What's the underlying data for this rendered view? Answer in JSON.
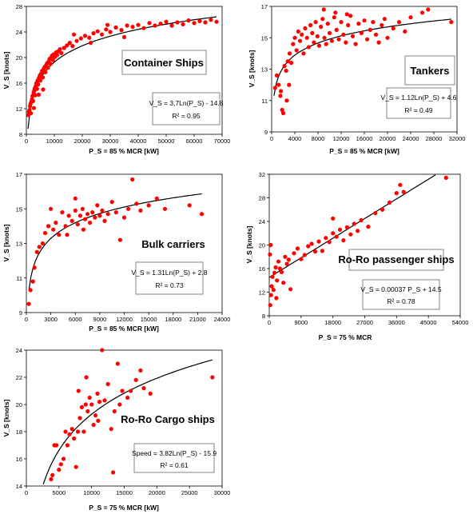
{
  "chart_data": [
    {
      "id": "container",
      "type": "scatter",
      "title": "Container Ships",
      "xlabel": "P_S = 85 % MCR [kW]",
      "ylabel": "V_S [knots]",
      "xlim": [
        0,
        70000
      ],
      "ylim": [
        8,
        28
      ],
      "xticks": [
        "0",
        "10000",
        "20000",
        "30000",
        "40000",
        "50000",
        "60000",
        "70000"
      ],
      "yticks": [
        "8",
        "12",
        "16",
        "20",
        "24",
        "28"
      ],
      "equation": "V_S = 3,7Ln(P_S) - 14.8",
      "r2": "R² = 0.95",
      "trend": {
        "kind": "log",
        "a": 3.7,
        "b": -14.8,
        "xmin": 600,
        "xmax": 68000
      },
      "colors": {
        "points": "#ff0000",
        "trend": "#000000"
      },
      "points": [
        [
          700,
          11.0
        ],
        [
          900,
          11.5
        ],
        [
          1100,
          11.8
        ],
        [
          1300,
          12.4
        ],
        [
          1500,
          12.8
        ],
        [
          1600,
          11.3
        ],
        [
          1800,
          13.1
        ],
        [
          2000,
          13.5
        ],
        [
          2200,
          14.0
        ],
        [
          2400,
          13.2
        ],
        [
          2600,
          14.5
        ],
        [
          2800,
          14.8
        ],
        [
          3000,
          15.2
        ],
        [
          3200,
          14.1
        ],
        [
          3400,
          15.6
        ],
        [
          3600,
          16.0
        ],
        [
          3800,
          15.1
        ],
        [
          4000,
          16.4
        ],
        [
          4200,
          15.8
        ],
        [
          4500,
          16.8
        ],
        [
          4800,
          17.2
        ],
        [
          5000,
          16.4
        ],
        [
          5300,
          17.5
        ],
        [
          5600,
          17.9
        ],
        [
          5900,
          16.9
        ],
        [
          6200,
          18.2
        ],
        [
          6500,
          18.5
        ],
        [
          6800,
          17.7
        ],
        [
          7100,
          18.8
        ],
        [
          7400,
          19.1
        ],
        [
          7700,
          18.4
        ],
        [
          8000,
          19.4
        ],
        [
          8300,
          19.8
        ],
        [
          8600,
          19.0
        ],
        [
          8900,
          20.0
        ],
        [
          9200,
          20.3
        ],
        [
          9500,
          19.6
        ],
        [
          9800,
          20.5
        ],
        [
          10200,
          20.1
        ],
        [
          10600,
          20.8
        ],
        [
          11000,
          20.4
        ],
        [
          11500,
          21.0
        ],
        [
          12000,
          21.3
        ],
        [
          12500,
          20.7
        ],
        [
          13500,
          21.5
        ],
        [
          14500,
          21.9
        ],
        [
          15500,
          22.3
        ],
        [
          16500,
          21.8
        ],
        [
          18000,
          22.6
        ],
        [
          19500,
          23.0
        ],
        [
          21000,
          23.4
        ],
        [
          22500,
          23.1
        ],
        [
          24000,
          23.8
        ],
        [
          25500,
          24.1
        ],
        [
          27000,
          23.6
        ],
        [
          28500,
          24.4
        ],
        [
          30000,
          24.0
        ],
        [
          32000,
          24.7
        ],
        [
          34000,
          24.3
        ],
        [
          36000,
          25.0
        ],
        [
          38000,
          24.8
        ],
        [
          40000,
          25.1
        ],
        [
          42000,
          24.6
        ],
        [
          44000,
          25.4
        ],
        [
          46000,
          25.0
        ],
        [
          48000,
          25.3
        ],
        [
          50000,
          25.6
        ],
        [
          52000,
          25.0
        ],
        [
          54000,
          25.5
        ],
        [
          56000,
          25.2
        ],
        [
          58000,
          25.8
        ],
        [
          60000,
          25.4
        ],
        [
          62000,
          25.7
        ],
        [
          64000,
          25.5
        ],
        [
          66000,
          25.9
        ],
        [
          68000,
          25.6
        ],
        [
          17000,
          23.6
        ],
        [
          23000,
          22.3
        ],
        [
          29000,
          25.1
        ],
        [
          2700,
          12.1
        ],
        [
          6000,
          15.0
        ],
        [
          4400,
          14.2
        ],
        [
          35000,
          23.2
        ]
      ]
    },
    {
      "id": "tankers",
      "type": "scatter",
      "title": "Tankers",
      "xlabel": "P_S = 85 % MCR [kW]",
      "ylabel": "V_S [knots]",
      "xlim": [
        0,
        32000
      ],
      "ylim": [
        9,
        17
      ],
      "xticks": [
        "0",
        "4000",
        "8000",
        "12000",
        "16000",
        "20000",
        "24000",
        "28000",
        "32000"
      ],
      "yticks": [
        "9",
        "11",
        "13",
        "15",
        "17"
      ],
      "equation": "V_S = 1.12Ln(P_S) + 4.6",
      "r2": "R² = 0.49",
      "trend": {
        "kind": "log",
        "a": 1.12,
        "b": 4.6,
        "xmin": 400,
        "xmax": 31000
      },
      "colors": {
        "points": "#ff0000",
        "trend": "#000000"
      },
      "points": [
        [
          600,
          11.8
        ],
        [
          900,
          12.6
        ],
        [
          1200,
          12.0
        ],
        [
          1500,
          11.3
        ],
        [
          1800,
          10.4
        ],
        [
          2000,
          10.2
        ],
        [
          2200,
          13.2
        ],
        [
          2500,
          12.9
        ],
        [
          2800,
          13.5
        ],
        [
          3100,
          14.0
        ],
        [
          3400,
          13.4
        ],
        [
          3700,
          14.6
        ],
        [
          4000,
          15.0
        ],
        [
          4300,
          14.2
        ],
        [
          4600,
          15.4
        ],
        [
          4900,
          14.8
        ],
        [
          5200,
          15.2
        ],
        [
          5500,
          14.0
        ],
        [
          5800,
          15.6
        ],
        [
          6100,
          15.0
        ],
        [
          6400,
          14.4
        ],
        [
          6700,
          15.8
        ],
        [
          7000,
          15.3
        ],
        [
          7300,
          14.7
        ],
        [
          7600,
          16.0
        ],
        [
          7900,
          15.1
        ],
        [
          8200,
          14.5
        ],
        [
          8500,
          15.7
        ],
        [
          8800,
          16.2
        ],
        [
          9100,
          15.0
        ],
        [
          9400,
          14.6
        ],
        [
          9700,
          15.9
        ],
        [
          10000,
          15.3
        ],
        [
          10400,
          14.8
        ],
        [
          10800,
          16.3
        ],
        [
          11200,
          15.5
        ],
        [
          11600,
          14.9
        ],
        [
          12000,
          16.0
        ],
        [
          12400,
          15.2
        ],
        [
          12800,
          14.7
        ],
        [
          13200,
          15.8
        ],
        [
          13600,
          16.4
        ],
        [
          14000,
          15.1
        ],
        [
          14500,
          14.6
        ],
        [
          15000,
          15.9
        ],
        [
          15500,
          15.3
        ],
        [
          16000,
          16.1
        ],
        [
          16500,
          14.9
        ],
        [
          17000,
          15.5
        ],
        [
          17500,
          16.0
        ],
        [
          18000,
          15.2
        ],
        [
          18500,
          14.7
        ],
        [
          19000,
          15.8
        ],
        [
          19500,
          16.2
        ],
        [
          20000,
          15.0
        ],
        [
          21000,
          15.6
        ],
        [
          22000,
          16.0
        ],
        [
          23000,
          15.4
        ],
        [
          24000,
          16.3
        ],
        [
          26000,
          16.6
        ],
        [
          27000,
          16.8
        ],
        [
          31000,
          16.0
        ],
        [
          9000,
          16.8
        ],
        [
          11000,
          16.6
        ],
        [
          13000,
          16.5
        ],
        [
          3000,
          12.0
        ],
        [
          2600,
          11.0
        ],
        [
          1600,
          11.6
        ]
      ]
    },
    {
      "id": "bulk",
      "type": "scatter",
      "title": "Bulk carriers",
      "xlabel": "P_S = 85 % MCR [kW]",
      "ylabel": "V_S [knots]",
      "xlim": [
        0,
        24000
      ],
      "ylim": [
        9,
        17
      ],
      "xticks": [
        "0",
        "3000",
        "6000",
        "9000",
        "12000",
        "15000",
        "18000",
        "21000",
        "24000"
      ],
      "yticks": [
        "9",
        "11",
        "13",
        "15",
        "17"
      ],
      "equation": "V_S = 1.31Ln(P_S) + 2.8",
      "r2": "R² = 0.73",
      "trend": {
        "kind": "log",
        "a": 1.31,
        "b": 2.8,
        "xmin": 300,
        "xmax": 21500
      },
      "colors": {
        "points": "#ff0000",
        "trend": "#000000"
      },
      "points": [
        [
          300,
          9.5
        ],
        [
          500,
          10.3
        ],
        [
          800,
          10.8
        ],
        [
          1000,
          11.6
        ],
        [
          1300,
          12.5
        ],
        [
          1600,
          12.8
        ],
        [
          2000,
          13.0
        ],
        [
          2300,
          13.6
        ],
        [
          2700,
          14.0
        ],
        [
          3000,
          15.0
        ],
        [
          3300,
          13.8
        ],
        [
          3600,
          14.2
        ],
        [
          4000,
          13.5
        ],
        [
          4400,
          14.8
        ],
        [
          4800,
          14.0
        ],
        [
          5200,
          14.6
        ],
        [
          5600,
          14.3
        ],
        [
          6000,
          14.9
        ],
        [
          6300,
          14.1
        ],
        [
          6600,
          14.6
        ],
        [
          6900,
          15.0
        ],
        [
          7200,
          14.4
        ],
        [
          7500,
          14.7
        ],
        [
          7800,
          14.2
        ],
        [
          8100,
          14.8
        ],
        [
          8400,
          14.5
        ],
        [
          8700,
          15.2
        ],
        [
          9000,
          14.6
        ],
        [
          9300,
          14.9
        ],
        [
          9600,
          14.3
        ],
        [
          10000,
          14.7
        ],
        [
          10500,
          15.4
        ],
        [
          11000,
          14.8
        ],
        [
          11500,
          13.2
        ],
        [
          12000,
          14.5
        ],
        [
          12500,
          15.0
        ],
        [
          13000,
          16.7
        ],
        [
          13500,
          15.3
        ],
        [
          14000,
          14.9
        ],
        [
          15000,
          15.2
        ],
        [
          16000,
          15.6
        ],
        [
          17000,
          15.0
        ],
        [
          20000,
          15.2
        ],
        [
          21500,
          14.7
        ],
        [
          7000,
          13.8
        ],
        [
          5000,
          13.5
        ],
        [
          6000,
          15.6
        ]
      ]
    },
    {
      "id": "roro-pass",
      "type": "scatter",
      "title": "Ro-Ro passenger ships",
      "xlabel": "P_S = 75 % MCR",
      "ylabel": "V_S [knots]",
      "xlim": [
        0,
        54000
      ],
      "ylim": [
        8,
        32
      ],
      "xticks": [
        "0",
        "9000",
        "18000",
        "27000",
        "36000",
        "45000",
        "54000"
      ],
      "yticks": [
        "8",
        "12",
        "16",
        "20",
        "24",
        "28",
        "32"
      ],
      "equation": "V_S = 0.00037 P_S + 14.5",
      "r2": "R² = 0.78",
      "trend": {
        "kind": "linear",
        "a": 0.00037,
        "b": 14.5,
        "xmin": 0,
        "xmax": 47000
      },
      "colors": {
        "points": "#ff0000",
        "trend": "#000000"
      },
      "points": [
        [
          300,
          9.8
        ],
        [
          500,
          11.5
        ],
        [
          700,
          13.0
        ],
        [
          900,
          14.6
        ],
        [
          1200,
          12.4
        ],
        [
          1500,
          15.3
        ],
        [
          1800,
          16.2
        ],
        [
          2200,
          14.0
        ],
        [
          2600,
          17.2
        ],
        [
          3000,
          16.0
        ],
        [
          3500,
          15.4
        ],
        [
          4000,
          13.6
        ],
        [
          4500,
          18.0
        ],
        [
          5000,
          16.8
        ],
        [
          5500,
          17.5
        ],
        [
          6000,
          12.5
        ],
        [
          7000,
          18.6
        ],
        [
          8000,
          19.4
        ],
        [
          9000,
          17.6
        ],
        [
          10000,
          18.3
        ],
        [
          11000,
          19.8
        ],
        [
          12000,
          20.2
        ],
        [
          13000,
          18.9
        ],
        [
          14000,
          20.6
        ],
        [
          15000,
          19.0
        ],
        [
          16000,
          21.2
        ],
        [
          17000,
          20.5
        ],
        [
          18000,
          22.0
        ],
        [
          19000,
          21.4
        ],
        [
          20000,
          22.6
        ],
        [
          21000,
          20.8
        ],
        [
          22000,
          23.0
        ],
        [
          23000,
          21.8
        ],
        [
          24000,
          23.6
        ],
        [
          25000,
          22.4
        ],
        [
          26000,
          24.2
        ],
        [
          28000,
          23.1
        ],
        [
          30000,
          25.4
        ],
        [
          32000,
          26.0
        ],
        [
          34000,
          27.2
        ],
        [
          36000,
          28.8
        ],
        [
          37000,
          30.2
        ],
        [
          38000,
          29.0
        ],
        [
          50000,
          31.4
        ],
        [
          200,
          18.4
        ],
        [
          400,
          20.0
        ],
        [
          18000,
          24.5
        ],
        [
          2000,
          11.0
        ]
      ]
    },
    {
      "id": "roro-cargo",
      "type": "scatter",
      "title": "Ro-Ro Cargo ships",
      "xlabel": "P_S = 75 % MCR [kW]",
      "ylabel": "V_S [knots]",
      "xlim": [
        0,
        30000
      ],
      "ylim": [
        14,
        24
      ],
      "xticks": [
        "0",
        "5000",
        "10000",
        "15000",
        "20000",
        "25000",
        "30000"
      ],
      "yticks": [
        "14",
        "16",
        "18",
        "20",
        "22",
        "24"
      ],
      "equation": "Speed = 3.82Ln(P_S) - 15.9",
      "r2": "R² = 0.61",
      "trend": {
        "kind": "log",
        "a": 3.82,
        "b": -15.9,
        "xmin": 2600,
        "xmax": 28500
      },
      "colors": {
        "points": "#ff0000",
        "trend": "#000000"
      },
      "points": [
        [
          3800,
          14.5
        ],
        [
          4000,
          14.8
        ],
        [
          4300,
          17.0
        ],
        [
          4600,
          17.0
        ],
        [
          5000,
          15.2
        ],
        [
          5300,
          15.6
        ],
        [
          5700,
          16.0
        ],
        [
          6000,
          18.0
        ],
        [
          6300,
          17.0
        ],
        [
          6600,
          17.8
        ],
        [
          7000,
          18.2
        ],
        [
          7300,
          17.5
        ],
        [
          7600,
          15.4
        ],
        [
          7900,
          18.0
        ],
        [
          8200,
          19.0
        ],
        [
          8500,
          19.8
        ],
        [
          8800,
          18.0
        ],
        [
          9100,
          20.0
        ],
        [
          9400,
          19.5
        ],
        [
          9700,
          20.5
        ],
        [
          10000,
          20.0
        ],
        [
          10300,
          18.5
        ],
        [
          10600,
          19.2
        ],
        [
          10900,
          20.8
        ],
        [
          11200,
          20.2
        ],
        [
          11600,
          24.0
        ],
        [
          12000,
          20.3
        ],
        [
          12500,
          21.5
        ],
        [
          13000,
          18.2
        ],
        [
          13500,
          19.5
        ],
        [
          14000,
          23.0
        ],
        [
          14300,
          20.0
        ],
        [
          14700,
          21.0
        ],
        [
          15500,
          20.5
        ],
        [
          16000,
          21.0
        ],
        [
          16800,
          21.8
        ],
        [
          17500,
          22.5
        ],
        [
          18000,
          21.2
        ],
        [
          19000,
          20.8
        ],
        [
          28500,
          22.0
        ],
        [
          13300,
          15.0
        ],
        [
          9200,
          22.0
        ],
        [
          8000,
          21.0
        ],
        [
          11000,
          18.8
        ]
      ]
    }
  ]
}
